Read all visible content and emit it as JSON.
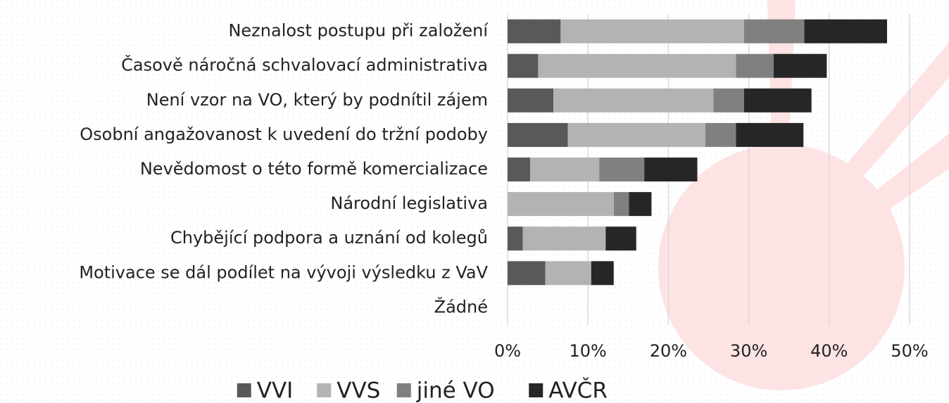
{
  "chart_data": {
    "type": "bar",
    "orientation": "horizontal",
    "stacked": true,
    "categories": [
      "Neznalost postupu při založení",
      "Časově náročná schvalovací administrativa",
      "Není vzor na VO, který by podnítil zájem",
      "Osobní angažovanost k uvedení do tržní podoby",
      "Nevědomost o této formě komercializace",
      "Národní legislativa",
      "Chybějící podpora a uznání od kolegů",
      "Motivace se dál podílet na vývoji výsledku z VaV",
      "Žádné"
    ],
    "series": [
      {
        "name": "VVI",
        "color": "#595959",
        "values": [
          6.6,
          3.8,
          5.7,
          7.5,
          2.8,
          0,
          1.9,
          4.7,
          0
        ]
      },
      {
        "name": "VVS",
        "color": "#b3b3b3",
        "values": [
          22.8,
          24.6,
          19.9,
          17.1,
          8.6,
          13.2,
          10.3,
          5.7,
          0
        ]
      },
      {
        "name": "jiné VO",
        "color": "#808080",
        "values": [
          7.5,
          4.7,
          3.8,
          3.8,
          5.6,
          1.9,
          0,
          0,
          0
        ]
      },
      {
        "name": "AVČR",
        "color": "#262626",
        "values": [
          10.3,
          6.6,
          8.4,
          8.4,
          6.6,
          2.8,
          3.8,
          2.8,
          0
        ]
      }
    ],
    "xlim": [
      0,
      50
    ],
    "xticks": [
      {
        "value": 0,
        "label": "0%"
      },
      {
        "value": 10,
        "label": "10%"
      },
      {
        "value": 20,
        "label": "20%"
      },
      {
        "value": 30,
        "label": "30%"
      },
      {
        "value": 40,
        "label": "40%"
      },
      {
        "value": 50,
        "label": "50%"
      }
    ],
    "grid": true,
    "legend": "bottom"
  }
}
